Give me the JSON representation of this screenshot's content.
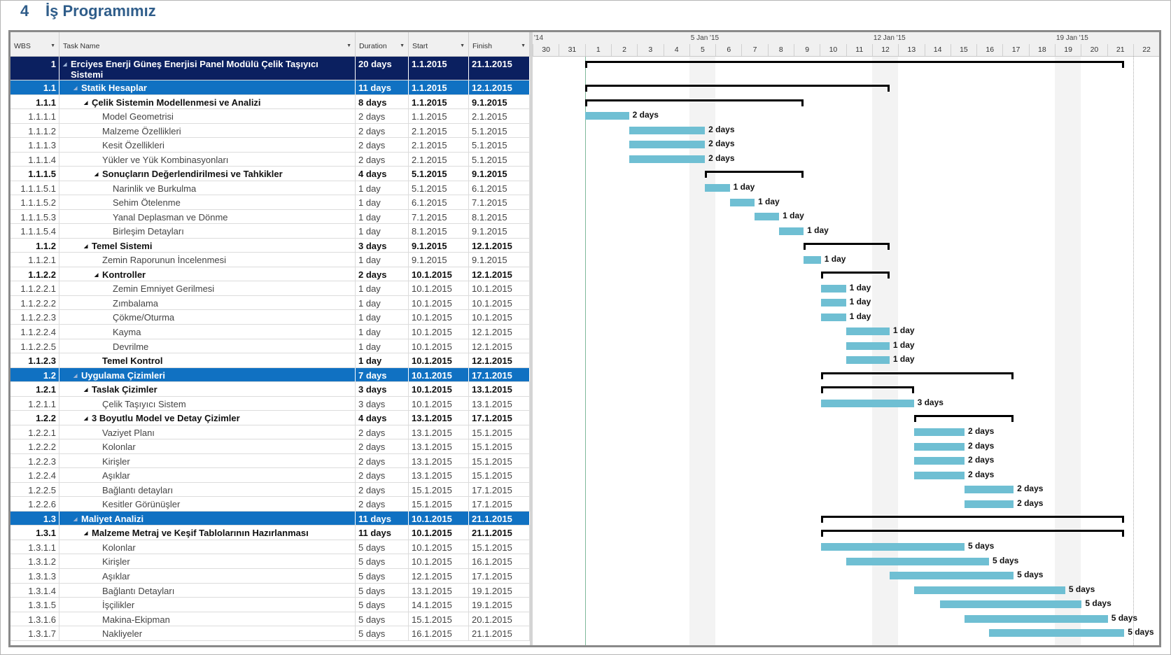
{
  "title": {
    "number": "4",
    "text": "İş Programımız"
  },
  "columns": {
    "wbs": "WBS",
    "task_name": "Task Name",
    "duration": "Duration",
    "start": "Start",
    "finish": "Finish"
  },
  "timescale": {
    "weeks": [
      {
        "label": "'14",
        "day_index": 0
      },
      {
        "label": "5 Jan '15",
        "day_index": 6
      },
      {
        "label": "12 Jan '15",
        "day_index": 13
      },
      {
        "label": "19 Jan '15",
        "day_index": 20
      }
    ],
    "days": [
      "30",
      "31",
      "1",
      "2",
      "3",
      "4",
      "5",
      "6",
      "7",
      "8",
      "9",
      "10",
      "11",
      "12",
      "13",
      "14",
      "15",
      "16",
      "17",
      "18",
      "19",
      "20",
      "21",
      "22"
    ],
    "nonworking_day_indices": [
      6,
      13,
      20
    ]
  },
  "colors": {
    "top_row": "#0b2060",
    "phase_row": "#1071c2",
    "bar": "#6fbfd3",
    "title": "#2f5d8a"
  },
  "rows": [
    {
      "wbs": "1",
      "name": "Erciyes Enerji Güneş Enerjisi Panel Modülü Çelik Taşıyıcı Sistemi",
      "duration": "20 days",
      "start": "1.1.2015",
      "finish": "21.1.2015",
      "style": "top",
      "bar": {
        "type": "summary",
        "start": 0,
        "end": 20.66
      }
    },
    {
      "wbs": "1.1",
      "name": "Statik Hesaplar",
      "duration": "11 days",
      "start": "1.1.2015",
      "finish": "12.1.2015",
      "style": "phase",
      "bar": {
        "type": "summary",
        "start": 0,
        "end": 11.67
      }
    },
    {
      "wbs": "1.1.1",
      "name": "Çelik Sistemin Modellenmesi ve Analizi",
      "duration": "8 days",
      "start": "1.1.2015",
      "finish": "9.1.2015",
      "style": "summary",
      "bar": {
        "type": "summary",
        "start": 0,
        "end": 8.38
      }
    },
    {
      "wbs": "1.1.1.1",
      "name": "Model Geometrisi",
      "duration": "2 days",
      "start": "1.1.2015",
      "finish": "2.1.2015",
      "style": "task",
      "bar": {
        "type": "task",
        "start": 0,
        "end": 1.69
      },
      "label": "2 days"
    },
    {
      "wbs": "1.1.1.2",
      "name": "Malzeme Özellikleri",
      "duration": "2 days",
      "start": "2.1.2015",
      "finish": "5.1.2015",
      "style": "task",
      "bar": {
        "type": "task",
        "start": 1.69,
        "end": 4.6
      },
      "label": "2 days"
    },
    {
      "wbs": "1.1.1.3",
      "name": "Kesit Özellikleri",
      "duration": "2 days",
      "start": "2.1.2015",
      "finish": "5.1.2015",
      "style": "task",
      "bar": {
        "type": "task",
        "start": 1.69,
        "end": 4.6
      },
      "label": "2 days"
    },
    {
      "wbs": "1.1.1.4",
      "name": "Yükler ve Yük Kombinasyonları",
      "duration": "2 days",
      "start": "2.1.2015",
      "finish": "5.1.2015",
      "style": "task",
      "bar": {
        "type": "task",
        "start": 1.69,
        "end": 4.6
      },
      "label": "2 days"
    },
    {
      "wbs": "1.1.1.5",
      "name": "Sonuçların Değerlendirilmesi ve Tahkikler",
      "duration": "4 days",
      "start": "5.1.2015",
      "finish": "9.1.2015",
      "style": "summary",
      "bar": {
        "type": "summary",
        "start": 4.6,
        "end": 8.38
      }
    },
    {
      "wbs": "1.1.1.5.1",
      "name": "Narinlik ve Burkulma",
      "duration": "1 day",
      "start": "5.1.2015",
      "finish": "6.1.2015",
      "style": "task",
      "bar": {
        "type": "task",
        "start": 4.6,
        "end": 5.55
      },
      "label": "1 day"
    },
    {
      "wbs": "1.1.1.5.2",
      "name": "Sehim Ötelenme",
      "duration": "1 day",
      "start": "6.1.2015",
      "finish": "7.1.2015",
      "style": "task",
      "bar": {
        "type": "task",
        "start": 5.55,
        "end": 6.5
      },
      "label": "1 day"
    },
    {
      "wbs": "1.1.1.5.3",
      "name": "Yanal Deplasman ve Dönme",
      "duration": "1 day",
      "start": "7.1.2015",
      "finish": "8.1.2015",
      "style": "task",
      "bar": {
        "type": "task",
        "start": 6.5,
        "end": 7.44
      },
      "label": "1 day"
    },
    {
      "wbs": "1.1.1.5.4",
      "name": "Birleşim Detayları",
      "duration": "1 day",
      "start": "8.1.2015",
      "finish": "9.1.2015",
      "style": "task",
      "bar": {
        "type": "task",
        "start": 7.44,
        "end": 8.38
      },
      "label": "1 day"
    },
    {
      "wbs": "1.1.2",
      "name": "Temel Sistemi",
      "duration": "3 days",
      "start": "9.1.2015",
      "finish": "12.1.2015",
      "style": "summary",
      "bar": {
        "type": "summary",
        "start": 8.38,
        "end": 11.67
      }
    },
    {
      "wbs": "1.1.2.1",
      "name": "Zemin Raporunun İncelenmesi",
      "duration": "1 day",
      "start": "9.1.2015",
      "finish": "9.1.2015",
      "style": "task",
      "bar": {
        "type": "task",
        "start": 8.38,
        "end": 9.04
      },
      "label": "1 day"
    },
    {
      "wbs": "1.1.2.2",
      "name": "Kontroller",
      "duration": "2 days",
      "start": "10.1.2015",
      "finish": "12.1.2015",
      "style": "summary",
      "bar": {
        "type": "summary",
        "start": 9.04,
        "end": 11.67
      }
    },
    {
      "wbs": "1.1.2.2.1",
      "name": "Zemin Emniyet Gerilmesi",
      "duration": "1 day",
      "start": "10.1.2015",
      "finish": "10.1.2015",
      "style": "task",
      "bar": {
        "type": "task",
        "start": 9.04,
        "end": 10.0
      },
      "label": "1 day"
    },
    {
      "wbs": "1.1.2.2.2",
      "name": "Zımbalama",
      "duration": "1 day",
      "start": "10.1.2015",
      "finish": "10.1.2015",
      "style": "task",
      "bar": {
        "type": "task",
        "start": 9.04,
        "end": 10.0
      },
      "label": "1 day"
    },
    {
      "wbs": "1.1.2.2.3",
      "name": "Çökme/Oturma",
      "duration": "1 day",
      "start": "10.1.2015",
      "finish": "10.1.2015",
      "style": "task",
      "bar": {
        "type": "task",
        "start": 9.04,
        "end": 10.0
      },
      "label": "1 day"
    },
    {
      "wbs": "1.1.2.2.4",
      "name": "Kayma",
      "duration": "1 day",
      "start": "10.1.2015",
      "finish": "12.1.2015",
      "style": "task",
      "bar": {
        "type": "task",
        "start": 10.0,
        "end": 11.67
      },
      "label": "1 day"
    },
    {
      "wbs": "1.1.2.2.5",
      "name": "Devrilme",
      "duration": "1 day",
      "start": "10.1.2015",
      "finish": "12.1.2015",
      "style": "task",
      "bar": {
        "type": "task",
        "start": 10.0,
        "end": 11.67
      },
      "label": "1 day"
    },
    {
      "wbs": "1.1.2.3",
      "name": "Temel Kontrol",
      "duration": "1 day",
      "start": "10.1.2015",
      "finish": "12.1.2015",
      "style": "bold",
      "bar": {
        "type": "task",
        "start": 10.0,
        "end": 11.67
      },
      "label": "1 day"
    },
    {
      "wbs": "1.2",
      "name": "Uygulama Çizimleri",
      "duration": "7 days",
      "start": "10.1.2015",
      "finish": "17.1.2015",
      "style": "phase",
      "bar": {
        "type": "summary",
        "start": 9.04,
        "end": 16.42
      }
    },
    {
      "wbs": "1.2.1",
      "name": "Taslak Çizimler",
      "duration": "3 days",
      "start": "10.1.2015",
      "finish": "13.1.2015",
      "style": "summary",
      "bar": {
        "type": "summary",
        "start": 9.04,
        "end": 12.6
      }
    },
    {
      "wbs": "1.2.1.1",
      "name": "Çelik Taşıyıcı Sistem",
      "duration": "3 days",
      "start": "10.1.2015",
      "finish": "13.1.2015",
      "style": "task",
      "bar": {
        "type": "task",
        "start": 9.04,
        "end": 12.6
      },
      "label": "3 days"
    },
    {
      "wbs": "1.2.2",
      "name": "3 Boyutlu Model ve Detay Çizimler",
      "duration": "4 days",
      "start": "13.1.2015",
      "finish": "17.1.2015",
      "style": "summary",
      "bar": {
        "type": "summary",
        "start": 12.6,
        "end": 16.42
      }
    },
    {
      "wbs": "1.2.2.1",
      "name": "Vaziyet Planı",
      "duration": "2 days",
      "start": "13.1.2015",
      "finish": "15.1.2015",
      "style": "task",
      "bar": {
        "type": "task",
        "start": 12.6,
        "end": 14.54
      },
      "label": "2 days"
    },
    {
      "wbs": "1.2.2.2",
      "name": "Kolonlar",
      "duration": "2 days",
      "start": "13.1.2015",
      "finish": "15.1.2015",
      "style": "task",
      "bar": {
        "type": "task",
        "start": 12.6,
        "end": 14.54
      },
      "label": "2 days"
    },
    {
      "wbs": "1.2.2.3",
      "name": "Kirişler",
      "duration": "2 days",
      "start": "13.1.2015",
      "finish": "15.1.2015",
      "style": "task",
      "bar": {
        "type": "task",
        "start": 12.6,
        "end": 14.54
      },
      "label": "2 days"
    },
    {
      "wbs": "1.2.2.4",
      "name": "Aşıklar",
      "duration": "2 days",
      "start": "13.1.2015",
      "finish": "15.1.2015",
      "style": "task",
      "bar": {
        "type": "task",
        "start": 12.6,
        "end": 14.54
      },
      "label": "2 days"
    },
    {
      "wbs": "1.2.2.5",
      "name": "Bağlantı detayları",
      "duration": "2 days",
      "start": "15.1.2015",
      "finish": "17.1.2015",
      "style": "task",
      "bar": {
        "type": "task",
        "start": 14.54,
        "end": 16.42
      },
      "label": "2 days"
    },
    {
      "wbs": "1.2.2.6",
      "name": "Kesitler Görünüşler",
      "duration": "2 days",
      "start": "15.1.2015",
      "finish": "17.1.2015",
      "style": "task",
      "bar": {
        "type": "task",
        "start": 14.54,
        "end": 16.42
      },
      "label": "2 days"
    },
    {
      "wbs": "1.3",
      "name": "Maliyet Analizi",
      "duration": "11 days",
      "start": "10.1.2015",
      "finish": "21.1.2015",
      "style": "phase",
      "bar": {
        "type": "summary",
        "start": 9.04,
        "end": 20.66
      }
    },
    {
      "wbs": "1.3.1",
      "name": "Malzeme Metraj ve Keşif Tablolarının Hazırlanması",
      "duration": "11 days",
      "start": "10.1.2015",
      "finish": "21.1.2015",
      "style": "summary",
      "bar": {
        "type": "summary",
        "start": 9.04,
        "end": 20.66
      }
    },
    {
      "wbs": "1.3.1.1",
      "name": "Kolonlar",
      "duration": "5 days",
      "start": "10.1.2015",
      "finish": "15.1.2015",
      "style": "task",
      "bar": {
        "type": "task",
        "start": 9.04,
        "end": 14.54
      },
      "label": "5 days"
    },
    {
      "wbs": "1.3.1.2",
      "name": "Kirişler",
      "duration": "5 days",
      "start": "10.1.2015",
      "finish": "16.1.2015",
      "style": "task",
      "bar": {
        "type": "task",
        "start": 10.0,
        "end": 15.48
      },
      "label": "5 days"
    },
    {
      "wbs": "1.3.1.3",
      "name": "Aşıklar",
      "duration": "5 days",
      "start": "12.1.2015",
      "finish": "17.1.2015",
      "style": "task",
      "bar": {
        "type": "task",
        "start": 11.67,
        "end": 16.42
      },
      "label": "5 days"
    },
    {
      "wbs": "1.3.1.4",
      "name": "Bağlantı Detayları",
      "duration": "5 days",
      "start": "13.1.2015",
      "finish": "19.1.2015",
      "style": "task",
      "bar": {
        "type": "task",
        "start": 12.6,
        "end": 18.4
      },
      "label": "5 days"
    },
    {
      "wbs": "1.3.1.5",
      "name": "İşçilikler",
      "duration": "5 days",
      "start": "14.1.2015",
      "finish": "19.1.2015",
      "style": "task",
      "bar": {
        "type": "task",
        "start": 13.59,
        "end": 19.03
      },
      "label": "5 days"
    },
    {
      "wbs": "1.3.1.6",
      "name": "Makina-Ekipman",
      "duration": "5 days",
      "start": "15.1.2015",
      "finish": "20.1.2015",
      "style": "task",
      "bar": {
        "type": "task",
        "start": 14.54,
        "end": 20.03
      },
      "label": "5 days"
    },
    {
      "wbs": "1.3.1.7",
      "name": "Nakliyeler",
      "duration": "5 days",
      "start": "16.1.2015",
      "finish": "21.1.2015",
      "style": "task",
      "bar": {
        "type": "task",
        "start": 15.48,
        "end": 20.66
      },
      "label": "5 days"
    }
  ]
}
